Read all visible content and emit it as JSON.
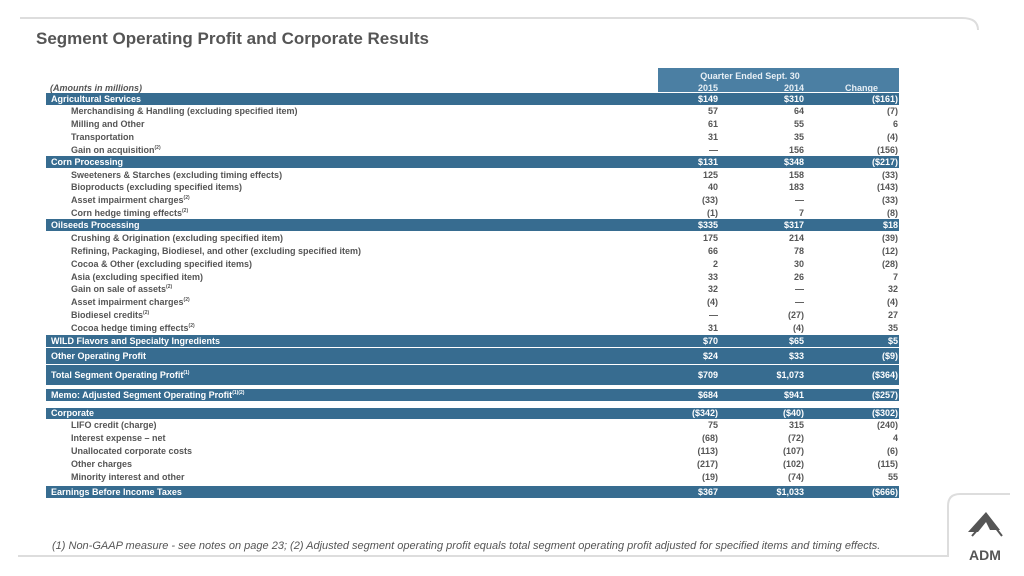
{
  "title": "Segment Operating Profit and Corporate Results",
  "header": {
    "period": "Quarter Ended Sept. 30",
    "units": "(Amounts in millions)",
    "columns": [
      "2015",
      "2014",
      "Change"
    ]
  },
  "groups": [
    {
      "label": "Agricultural Services",
      "values": [
        "$149",
        "$310",
        "($161)"
      ],
      "items": [
        {
          "label": "Merchandising & Handling (excluding specified item)",
          "values": [
            "57",
            "64",
            "(7)"
          ]
        },
        {
          "label": "Milling and Other",
          "values": [
            "61",
            "55",
            "6"
          ]
        },
        {
          "label": "Transportation",
          "values": [
            "31",
            "35",
            "(4)"
          ]
        },
        {
          "label": "Gain on acquisition",
          "note": "(2)",
          "values": [
            "—",
            "156",
            "(156)"
          ]
        }
      ]
    },
    {
      "label": "Corn Processing",
      "values": [
        "$131",
        "$348",
        "($217)"
      ],
      "items": [
        {
          "label": "Sweeteners & Starches (excluding timing effects)",
          "values": [
            "125",
            "158",
            "(33)"
          ]
        },
        {
          "label": "Bioproducts (excluding specified items)",
          "values": [
            "40",
            "183",
            "(143)"
          ]
        },
        {
          "label": "Asset impairment charges",
          "note": "(2)",
          "values": [
            "(33)",
            "—",
            "(33)"
          ]
        },
        {
          "label": "Corn hedge timing effects",
          "note": "(2)",
          "values": [
            "(1)",
            "7",
            "(8)"
          ]
        }
      ]
    },
    {
      "label": "Oilseeds Processing",
      "values": [
        "$335",
        "$317",
        "$18"
      ],
      "items": [
        {
          "label": "Crushing & Origination (excluding specified item)",
          "values": [
            "175",
            "214",
            "(39)"
          ]
        },
        {
          "label": "Refining, Packaging, Biodiesel, and other (excluding specified item)",
          "values": [
            "66",
            "78",
            "(12)"
          ]
        },
        {
          "label": "Cocoa & Other (excluding specified items)",
          "values": [
            "2",
            "30",
            "(28)"
          ]
        },
        {
          "label": "Asia (excluding specified item)",
          "values": [
            "33",
            "26",
            "7"
          ]
        },
        {
          "label": "Gain on sale of assets",
          "note": "(2)",
          "values": [
            "32",
            "—",
            "32"
          ]
        },
        {
          "label": "Asset impairment charges",
          "note": "(2)",
          "values": [
            "(4)",
            "—",
            "(4)"
          ]
        },
        {
          "label": "Biodiesel credits",
          "note": "(2)",
          "values": [
            "—",
            "(27)",
            "27"
          ]
        },
        {
          "label": "Cocoa hedge timing effects",
          "note": "(2)",
          "values": [
            "31",
            "(4)",
            "35"
          ]
        }
      ]
    },
    {
      "label": "WILD Flavors and Specialty Ingredients",
      "values": [
        "$70",
        "$65",
        "$5"
      ],
      "items": []
    },
    {
      "label": "Other Operating Profit",
      "values": [
        "$24",
        "$33",
        "($9)"
      ],
      "items": []
    },
    {
      "label": "Total Segment Operating Profit",
      "note": "(1)",
      "values": [
        "$709",
        "$1,073",
        "($364)"
      ],
      "items": []
    },
    {
      "label": "Memo: Adjusted Segment Operating Profit",
      "note": "(1)(2)",
      "values": [
        "$684",
        "$941",
        "($257)"
      ],
      "items": []
    },
    {
      "label": "Corporate",
      "values": [
        "($342)",
        "($40)",
        "($302)"
      ],
      "items": [
        {
          "label": "LIFO credit (charge)",
          "values": [
            "75",
            "315",
            "(240)"
          ]
        },
        {
          "label": "Interest expense – net",
          "values": [
            "(68)",
            "(72)",
            "4"
          ]
        },
        {
          "label": "Unallocated corporate costs",
          "values": [
            "(113)",
            "(107)",
            "(6)"
          ]
        },
        {
          "label": "Other charges",
          "values": [
            "(217)",
            "(102)",
            "(115)"
          ]
        },
        {
          "label": "Minority interest and other",
          "values": [
            "(19)",
            "(74)",
            "55"
          ]
        }
      ]
    },
    {
      "label": "Earnings Before Income Taxes",
      "values": [
        "$367",
        "$1,033",
        "($666)"
      ],
      "items": []
    }
  ],
  "footnote": "(1) Non-GAAP measure - see notes on page 23; (2) Adjusted segment operating profit equals total segment operating profit adjusted for specified items and timing effects.",
  "logo": "ADM"
}
